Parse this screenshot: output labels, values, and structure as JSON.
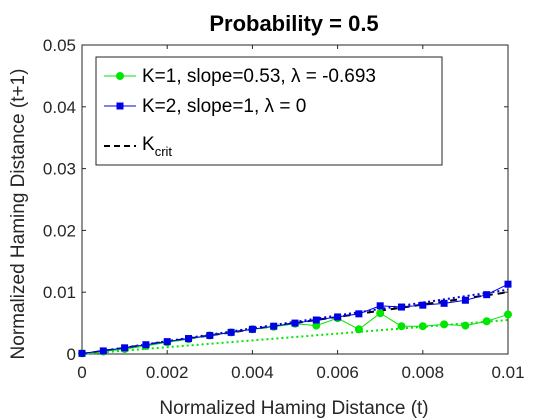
{
  "chart_data": {
    "type": "line",
    "title": "Probability = 0.5",
    "xlabel": "Normalized Haming Distance (t)",
    "ylabel": "Normalized Haming Distance (t+1)",
    "xlim": [
      0,
      0.01
    ],
    "ylim": [
      0,
      0.05
    ],
    "xticks": [
      0,
      0.002,
      0.004,
      0.006,
      0.008,
      0.01
    ],
    "xtick_labels": [
      "0",
      "0.002",
      "0.004",
      "0.006",
      "0.008",
      "0.01"
    ],
    "yticks": [
      0,
      0.01,
      0.02,
      0.03,
      0.04,
      0.05
    ],
    "ytick_labels": [
      "0",
      "0.01",
      "0.02",
      "0.03",
      "0.04",
      "0.05"
    ],
    "grid": false,
    "legend_position": "top-left",
    "series": [
      {
        "name": "K=1, slope=0.53, λ = -0.693",
        "color": "#00e600",
        "marker": "circle",
        "x": [
          0,
          0.0005,
          0.001,
          0.0015,
          0.002,
          0.0025,
          0.003,
          0.0035,
          0.004,
          0.0045,
          0.005,
          0.0055,
          0.006,
          0.0065,
          0.007,
          0.0075,
          0.008,
          0.0085,
          0.009,
          0.0095,
          0.01
        ],
        "y": [
          0.0001,
          0.0004,
          0.0008,
          0.0013,
          0.0019,
          0.0024,
          0.003,
          0.0035,
          0.004,
          0.0044,
          0.0049,
          0.0046,
          0.0058,
          0.004,
          0.0066,
          0.0045,
          0.0045,
          0.0048,
          0.0046,
          0.0053,
          0.0064
        ]
      },
      {
        "name": "K=2, slope=1, λ = 0",
        "color": "#0000e6",
        "marker": "square",
        "x": [
          0,
          0.0005,
          0.001,
          0.0015,
          0.002,
          0.0025,
          0.003,
          0.0035,
          0.004,
          0.0045,
          0.005,
          0.0055,
          0.006,
          0.0065,
          0.007,
          0.0075,
          0.008,
          0.0085,
          0.009,
          0.0095,
          0.01
        ],
        "y": [
          0.0001,
          0.0005,
          0.001,
          0.0015,
          0.002,
          0.0025,
          0.003,
          0.0035,
          0.004,
          0.0045,
          0.005,
          0.0055,
          0.006,
          0.0065,
          0.0078,
          0.0076,
          0.0079,
          0.0082,
          0.0087,
          0.0096,
          0.0113
        ]
      }
    ],
    "reference_lines": [
      {
        "name": "K",
        "name_sub": "crit",
        "color": "#000000",
        "style": "dashed",
        "x": [
          0,
          0.01
        ],
        "y": [
          0,
          0.01
        ]
      },
      {
        "color": "#0000e6",
        "style": "dotted",
        "x": [
          0,
          0.01
        ],
        "y": [
          0,
          0.0104
        ]
      },
      {
        "color": "#00e600",
        "style": "dotted",
        "x": [
          0,
          0.01
        ],
        "y": [
          0,
          0.0055
        ]
      }
    ]
  }
}
